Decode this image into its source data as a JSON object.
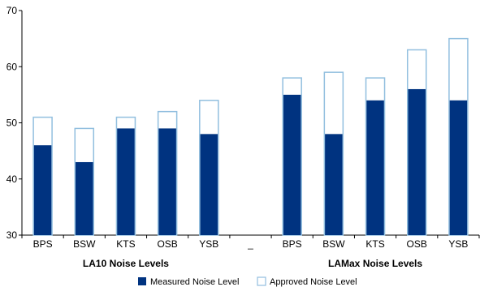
{
  "chart_data": {
    "type": "bar",
    "stacking": "overlay",
    "categories": [
      "BPS",
      "BSW",
      "KTS",
      "OSB",
      "YSB",
      "_",
      "BPS",
      "BSW",
      "KTS",
      "OSB",
      "YSB"
    ],
    "groups": [
      {
        "label": "LA10 Noise Levels",
        "categories": [
          "BPS",
          "BSW",
          "KTS",
          "OSB",
          "YSB"
        ]
      },
      {
        "label": "LAMax Noise Levels",
        "categories": [
          "BPS",
          "BSW",
          "KTS",
          "OSB",
          "YSB"
        ]
      }
    ],
    "series": [
      {
        "name": "Measured Noise Level",
        "values": [
          46,
          43,
          49,
          49,
          48,
          null,
          55,
          48,
          54,
          56,
          54
        ]
      },
      {
        "name": "Approved Noise Level",
        "values": [
          51,
          49,
          51,
          52,
          54,
          null,
          58,
          59,
          58,
          63,
          65
        ]
      }
    ],
    "ylim": [
      30,
      70
    ],
    "yticks": [
      30,
      40,
      50,
      60,
      70
    ],
    "grid": false,
    "legend_position": "bottom",
    "colors": {
      "measured": "#003380",
      "approved_outline": "#92bfdf"
    }
  }
}
